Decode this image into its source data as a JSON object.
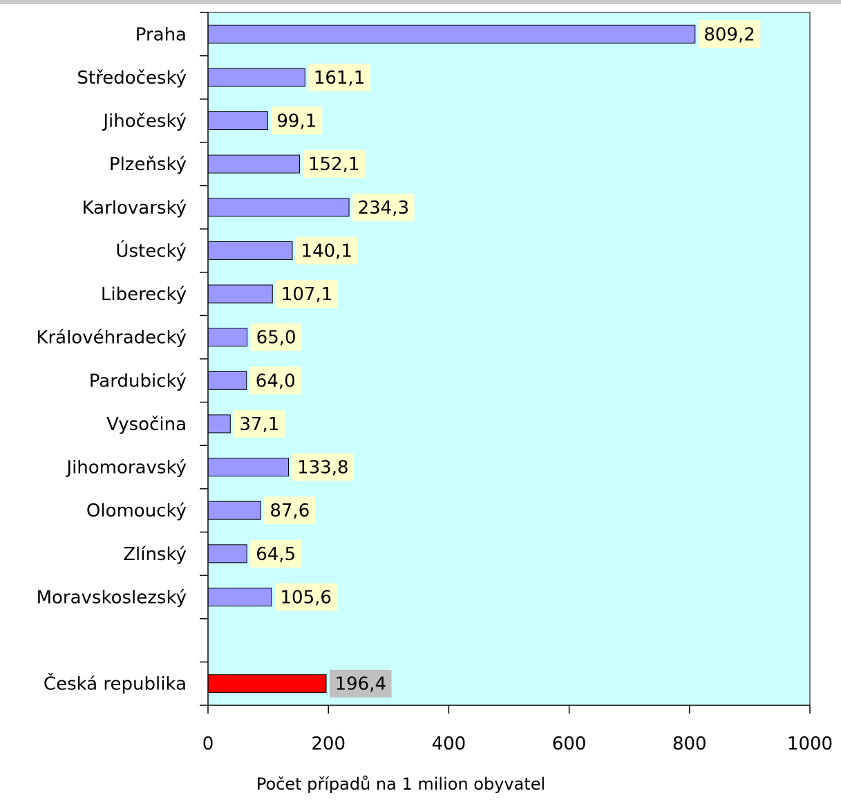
{
  "chart_data": {
    "type": "bar",
    "orientation": "horizontal",
    "title": "",
    "xlabel": "Počet případů na 1 milion obyvatel",
    "ylabel": "",
    "xlim": [
      0,
      1000
    ],
    "xticks": [
      "0",
      "200",
      "400",
      "600",
      "800",
      "1000"
    ],
    "grid": false,
    "legend": "none",
    "colors": {
      "plot_background": "#ccffff",
      "bar": "#9999ff",
      "bar_highlight": "#ff0000",
      "value_label_bg": "#ffffcc",
      "value_label_bg_highlight": "#c0c0c0"
    },
    "categories": [
      "Praha",
      "Středočeský",
      "Jihočeský",
      "Plzeňský",
      "Karlovarský",
      "Ústecký",
      "Liberecký",
      "Královéhradecký",
      "Pardubický",
      "Vysočina",
      "Jihomoravský",
      "Olomoucký",
      "Zlínský",
      "Moravskoslezský",
      "",
      "Česká republika"
    ],
    "values": [
      809.2,
      161.1,
      99.1,
      152.1,
      234.3,
      140.1,
      107.1,
      65.0,
      64.0,
      37.1,
      133.8,
      87.6,
      64.5,
      105.6,
      null,
      196.4
    ],
    "value_labels": [
      "809,2",
      "161,1",
      "99,1",
      "152,1",
      "234,3",
      "140,1",
      "107,1",
      "65,0",
      "64,0",
      "37,1",
      "133,8",
      "87,6",
      "64,5",
      "105,6",
      "",
      "196,4"
    ],
    "highlight_category": "Česká republika"
  }
}
